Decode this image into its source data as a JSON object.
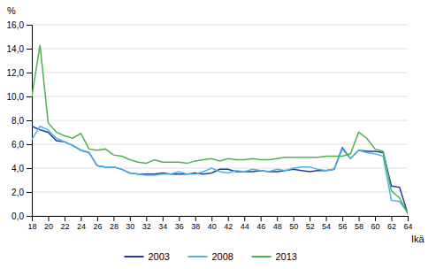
{
  "chart_data": {
    "type": "line",
    "xlabel": "Ikä",
    "ylabel": "%",
    "x": [
      18,
      19,
      20,
      21,
      22,
      23,
      24,
      25,
      26,
      27,
      28,
      29,
      30,
      31,
      32,
      33,
      34,
      35,
      36,
      37,
      38,
      39,
      40,
      41,
      42,
      43,
      44,
      45,
      46,
      47,
      48,
      49,
      50,
      51,
      52,
      53,
      54,
      55,
      56,
      57,
      58,
      59,
      60,
      61,
      62,
      63,
      64
    ],
    "series": [
      {
        "name": "2003",
        "color": "#1f3d99",
        "values": [
          7.5,
          7.2,
          7.0,
          6.3,
          6.2,
          5.9,
          5.5,
          5.3,
          4.2,
          4.1,
          4.1,
          3.9,
          3.6,
          3.5,
          3.5,
          3.5,
          3.6,
          3.5,
          3.5,
          3.5,
          3.6,
          3.5,
          3.6,
          3.9,
          3.9,
          3.7,
          3.7,
          3.7,
          3.8,
          3.7,
          3.7,
          3.8,
          3.9,
          3.8,
          3.7,
          3.8,
          3.8,
          3.9,
          5.7,
          4.8,
          5.5,
          5.4,
          5.4,
          5.3,
          2.5,
          2.4,
          0.2
        ]
      },
      {
        "name": "2008",
        "color": "#4db3e6",
        "values": [
          6.4,
          7.5,
          7.2,
          6.5,
          6.2,
          5.9,
          5.5,
          5.3,
          4.2,
          4.1,
          4.1,
          3.9,
          3.6,
          3.5,
          3.4,
          3.4,
          3.5,
          3.5,
          3.7,
          3.5,
          3.5,
          3.7,
          4.0,
          3.7,
          3.6,
          3.8,
          3.7,
          3.9,
          3.8,
          3.7,
          3.9,
          3.8,
          4.0,
          4.1,
          4.1,
          3.9,
          3.8,
          3.9,
          5.6,
          4.8,
          5.5,
          5.3,
          5.2,
          5.0,
          1.3,
          1.2,
          0.3
        ]
      },
      {
        "name": "2013",
        "color": "#4db34d",
        "values": [
          10.0,
          14.3,
          7.8,
          7.0,
          6.7,
          6.5,
          6.9,
          5.6,
          5.5,
          5.6,
          5.1,
          5.0,
          4.7,
          4.5,
          4.4,
          4.7,
          4.5,
          4.5,
          4.5,
          4.4,
          4.6,
          4.7,
          4.8,
          4.6,
          4.8,
          4.7,
          4.7,
          4.8,
          4.7,
          4.7,
          4.8,
          4.9,
          4.9,
          4.9,
          4.9,
          4.9,
          5.0,
          5.0,
          5.0,
          5.2,
          7.0,
          6.5,
          5.6,
          5.4,
          2.1,
          1.5,
          0.2
        ]
      }
    ],
    "xlim": [
      18,
      64
    ],
    "xticks": [
      18,
      20,
      22,
      24,
      26,
      28,
      30,
      32,
      34,
      36,
      38,
      40,
      42,
      44,
      46,
      48,
      50,
      52,
      54,
      56,
      58,
      60,
      62,
      64
    ],
    "ylim": [
      0,
      16
    ],
    "yticks": [
      {
        "value": 0,
        "label": "0,0"
      },
      {
        "value": 2,
        "label": "2,0"
      },
      {
        "value": 4,
        "label": "4,0"
      },
      {
        "value": 6,
        "label": "6,0"
      },
      {
        "value": 8,
        "label": "8,0"
      },
      {
        "value": 10,
        "label": "10,0"
      },
      {
        "value": 12,
        "label": "12,0"
      },
      {
        "value": 14,
        "label": "14,0"
      },
      {
        "value": 16,
        "label": "16,0"
      }
    ],
    "grid": true,
    "legend": "bottom"
  }
}
